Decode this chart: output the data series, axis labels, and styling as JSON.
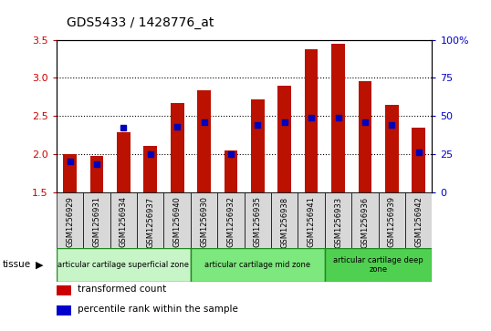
{
  "title": "GDS5433 / 1428776_at",
  "samples": [
    "GSM1256929",
    "GSM1256931",
    "GSM1256934",
    "GSM1256937",
    "GSM1256940",
    "GSM1256930",
    "GSM1256932",
    "GSM1256935",
    "GSM1256938",
    "GSM1256941",
    "GSM1256933",
    "GSM1256936",
    "GSM1256939",
    "GSM1256942"
  ],
  "transformed_count": [
    2.0,
    1.97,
    2.28,
    2.1,
    2.67,
    2.83,
    2.05,
    2.72,
    2.9,
    3.37,
    3.45,
    2.95,
    2.65,
    2.35
  ],
  "percentile_rank": [
    20,
    18,
    42,
    25,
    43,
    46,
    25,
    44,
    46,
    49,
    49,
    46,
    44,
    26
  ],
  "ylim_left": [
    1.5,
    3.5
  ],
  "ylim_right": [
    0,
    100
  ],
  "y_ticks_left": [
    1.5,
    2.0,
    2.5,
    3.0,
    3.5
  ],
  "y_ticks_right": [
    0,
    25,
    50,
    75,
    100
  ],
  "groups": [
    {
      "label": "articular cartilage superficial zone",
      "start": 0,
      "end": 5,
      "color": "#c8f5c8"
    },
    {
      "label": "articular cartilage mid zone",
      "start": 5,
      "end": 10,
      "color": "#7de87d"
    },
    {
      "label": "articular cartilage deep\nzone",
      "start": 10,
      "end": 14,
      "color": "#50d050"
    }
  ],
  "bar_color": "#bb1100",
  "dot_color": "#0000bb",
  "baseline": 1.5,
  "bar_width": 0.5,
  "plot_bg": "#ffffff",
  "xtick_bg": "#d8d8d8",
  "tick_label_color_left": "#cc0000",
  "tick_label_color_right": "#0000cc",
  "legend_items": [
    {
      "label": "transformed count",
      "color": "#cc0000"
    },
    {
      "label": "percentile rank within the sample",
      "color": "#0000cc"
    }
  ]
}
